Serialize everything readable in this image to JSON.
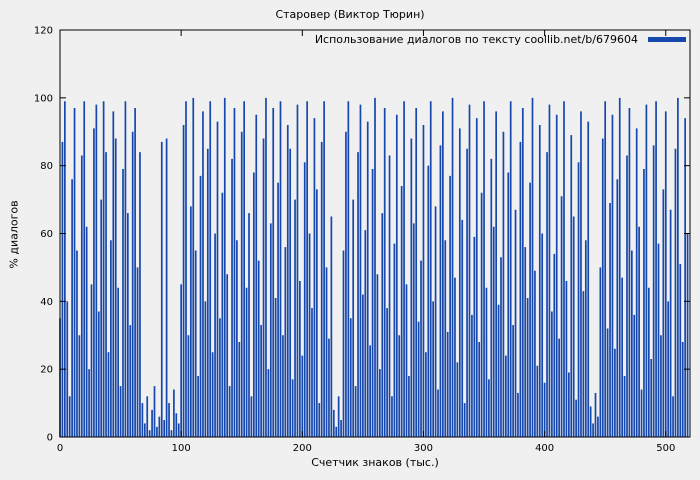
{
  "chart_data": {
    "type": "bar",
    "style": "impulses",
    "title": "Старовер (Виктор Тюрин)",
    "legend": "Использование диалогов по тексту coollib.net/b/679604",
    "legend_position": "top-right-inside",
    "xlabel": "Счетчик знаков (тыс.)",
    "ylabel": "% диалогов",
    "xlim": [
      0,
      520
    ],
    "ylim": [
      0,
      120
    ],
    "xticks": [
      0,
      100,
      200,
      300,
      400,
      500
    ],
    "yticks": [
      0,
      20,
      40,
      60,
      80,
      100,
      120
    ],
    "grid": false,
    "x_step": 2,
    "bar_color": "#1547ad",
    "background_color": "#f0f0f0",
    "border_color": "#000000",
    "values": [
      35,
      87,
      99,
      40,
      12,
      76,
      97,
      55,
      30,
      83,
      99,
      62,
      20,
      45,
      91,
      98,
      37,
      70,
      99,
      84,
      25,
      58,
      96,
      88,
      44,
      15,
      79,
      99,
      66,
      33,
      90,
      97,
      50,
      84,
      10,
      4,
      12,
      2,
      8,
      15,
      3,
      6,
      87,
      5,
      88,
      10,
      2,
      14,
      7,
      4,
      45,
      92,
      99,
      30,
      68,
      100,
      55,
      18,
      77,
      96,
      40,
      85,
      99,
      25,
      60,
      93,
      35,
      72,
      100,
      48,
      15,
      82,
      97,
      58,
      28,
      90,
      99,
      44,
      66,
      12,
      78,
      95,
      52,
      33,
      88,
      100,
      20,
      63,
      97,
      41,
      75,
      99,
      30,
      56,
      92,
      85,
      17,
      70,
      98,
      46,
      24,
      81,
      99,
      60,
      38,
      94,
      73,
      10,
      87,
      99,
      50,
      29,
      65,
      8,
      3,
      12,
      5,
      55,
      90,
      99,
      35,
      70,
      15,
      84,
      98,
      42,
      61,
      93,
      27,
      79,
      100,
      48,
      20,
      66,
      97,
      38,
      83,
      12,
      57,
      95,
      30,
      74,
      99,
      45,
      18,
      88,
      63,
      97,
      34,
      52,
      92,
      25,
      80,
      99,
      40,
      68,
      14,
      86,
      96,
      58,
      31,
      77,
      100,
      47,
      22,
      91,
      64,
      10,
      85,
      98,
      36,
      59,
      94,
      28,
      72,
      99,
      44,
      17,
      82,
      62,
      96,
      39,
      53,
      90,
      24,
      78,
      99,
      33,
      67,
      13,
      87,
      97,
      56,
      41,
      75,
      100,
      49,
      21,
      92,
      60,
      16,
      84,
      98,
      37,
      54,
      95,
      29,
      71,
      99,
      46,
      19,
      89,
      65,
      11,
      81,
      96,
      43,
      58,
      93,
      9,
      4,
      13,
      6,
      50,
      88,
      99,
      32,
      69,
      95,
      26,
      76,
      100,
      47,
      18,
      83,
      97,
      55,
      36,
      91,
      62,
      14,
      79,
      98,
      44,
      23,
      86,
      99,
      57,
      30,
      73,
      96,
      40,
      67,
      12,
      85,
      100,
      51,
      28,
      94,
      60
    ]
  }
}
